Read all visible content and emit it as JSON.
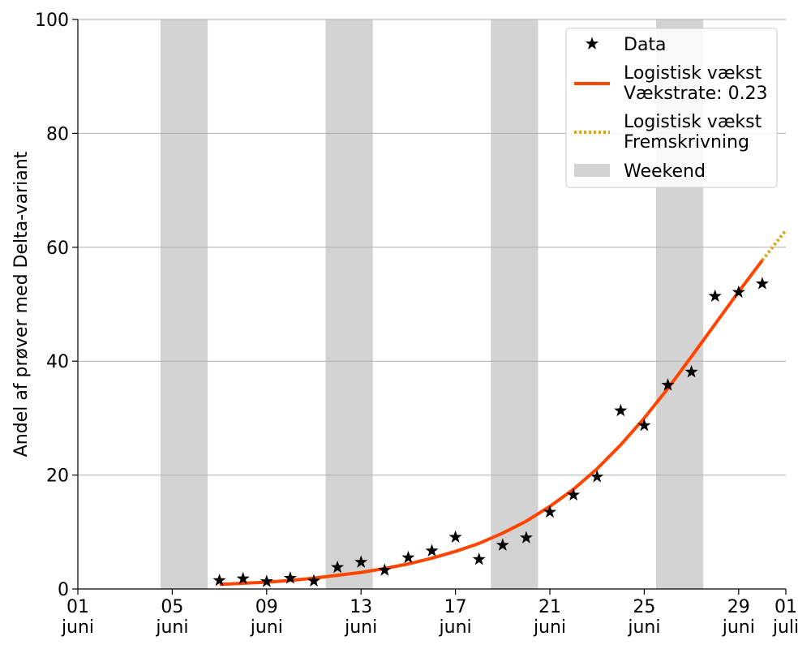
{
  "chart_data": {
    "type": "line",
    "ylabel": "Andel af prøver med Delta-variant",
    "xlabel": "",
    "ylim": [
      0,
      100
    ],
    "yticks": [
      0,
      20,
      40,
      60,
      80,
      100
    ],
    "xlim": [
      "2021-06-01",
      "2021-07-01"
    ],
    "xticks": [
      {
        "date": "2021-06-01",
        "day": "01",
        "month": "juni"
      },
      {
        "date": "2021-06-05",
        "day": "05",
        "month": "juni"
      },
      {
        "date": "2021-06-09",
        "day": "09",
        "month": "juni"
      },
      {
        "date": "2021-06-13",
        "day": "13",
        "month": "juni"
      },
      {
        "date": "2021-06-17",
        "day": "17",
        "month": "juni"
      },
      {
        "date": "2021-06-21",
        "day": "21",
        "month": "juni"
      },
      {
        "date": "2021-06-25",
        "day": "25",
        "month": "juni"
      },
      {
        "date": "2021-06-29",
        "day": "29",
        "month": "juni"
      },
      {
        "date": "2021-07-01",
        "day": "01",
        "month": "juli"
      }
    ],
    "grid": "horizontal",
    "legend_position": "top-right",
    "weekends": [
      [
        "2021-06-05",
        "2021-06-06"
      ],
      [
        "2021-06-12",
        "2021-06-13"
      ],
      [
        "2021-06-19",
        "2021-06-20"
      ],
      [
        "2021-06-26",
        "2021-06-27"
      ]
    ],
    "series": [
      {
        "name": "Data",
        "kind": "scatter",
        "marker": "star",
        "color": "#000000",
        "points": [
          [
            "2021-06-07",
            1.5
          ],
          [
            "2021-06-08",
            1.8
          ],
          [
            "2021-06-09",
            1.3
          ],
          [
            "2021-06-10",
            1.9
          ],
          [
            "2021-06-11",
            1.4
          ],
          [
            "2021-06-12",
            3.8
          ],
          [
            "2021-06-13",
            4.7
          ],
          [
            "2021-06-14",
            3.3
          ],
          [
            "2021-06-15",
            5.5
          ],
          [
            "2021-06-16",
            6.7
          ],
          [
            "2021-06-17",
            9.1
          ],
          [
            "2021-06-18",
            5.2
          ],
          [
            "2021-06-19",
            7.7
          ],
          [
            "2021-06-20",
            9.0
          ],
          [
            "2021-06-21",
            13.5
          ],
          [
            "2021-06-22",
            16.5
          ],
          [
            "2021-06-23",
            19.7
          ],
          [
            "2021-06-24",
            31.3
          ],
          [
            "2021-06-25",
            28.7
          ],
          [
            "2021-06-26",
            35.8
          ],
          [
            "2021-06-27",
            38.1
          ],
          [
            "2021-06-28",
            51.4
          ],
          [
            "2021-06-29",
            52.1
          ],
          [
            "2021-06-30",
            53.6
          ]
        ]
      },
      {
        "name": "Logistisk vækst\nVækstrate: 0.23",
        "kind": "line",
        "color": "#ff4500",
        "points": [
          [
            "2021-06-07",
            0.8
          ],
          [
            "2021-06-08",
            1.0
          ],
          [
            "2021-06-09",
            1.2
          ],
          [
            "2021-06-10",
            1.5
          ],
          [
            "2021-06-11",
            1.9
          ],
          [
            "2021-06-12",
            2.4
          ],
          [
            "2021-06-13",
            2.9
          ],
          [
            "2021-06-14",
            3.6
          ],
          [
            "2021-06-15",
            4.4
          ],
          [
            "2021-06-16",
            5.4
          ],
          [
            "2021-06-17",
            6.6
          ],
          [
            "2021-06-18",
            8.0
          ],
          [
            "2021-06-19",
            9.8
          ],
          [
            "2021-06-20",
            11.9
          ],
          [
            "2021-06-21",
            14.5
          ],
          [
            "2021-06-22",
            17.5
          ],
          [
            "2021-06-23",
            21.1
          ],
          [
            "2021-06-24",
            25.3
          ],
          [
            "2021-06-25",
            30.0
          ],
          [
            "2021-06-26",
            35.2
          ],
          [
            "2021-06-27",
            40.8
          ],
          [
            "2021-06-28",
            46.5
          ],
          [
            "2021-06-29",
            52.2
          ],
          [
            "2021-06-30",
            57.7
          ]
        ]
      },
      {
        "name": "Logistisk vækst\nFremskrivning",
        "kind": "line",
        "style": "dotted",
        "color": "#daa520",
        "points": [
          [
            "2021-06-30",
            57.7
          ],
          [
            "2021-07-01",
            63.0
          ]
        ]
      },
      {
        "name": "Weekend",
        "kind": "patch",
        "color": "#d3d3d3"
      }
    ]
  }
}
